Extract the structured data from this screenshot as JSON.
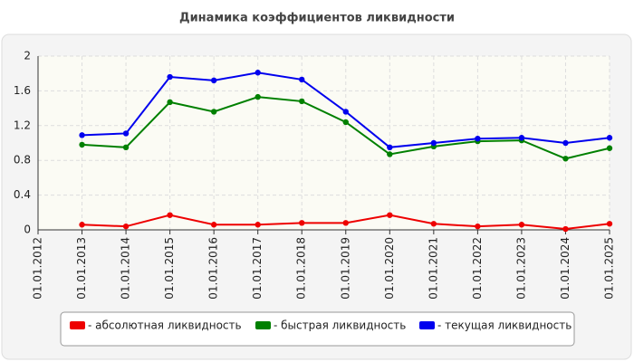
{
  "chart_data": {
    "type": "line",
    "title": "Динамика коэффициентов ликвидности",
    "categories": [
      "01.01.2012",
      "01.01.2013",
      "01.01.2014",
      "01.01.2015",
      "01.01.2016",
      "01.01.2017",
      "01.01.2018",
      "01.01.2019",
      "01.01.2020",
      "01.01.2021",
      "01.01.2022",
      "01.01.2023",
      "01.01.2024",
      "01.01.2025"
    ],
    "series": [
      {
        "name": "- абсолютная ликвидность",
        "color": "#ee0000",
        "values": [
          null,
          0.06,
          0.04,
          0.17,
          0.06,
          0.06,
          0.08,
          0.08,
          0.17,
          0.07,
          0.04,
          0.06,
          0.01,
          0.07
        ]
      },
      {
        "name": "- быстрая ликвидность",
        "color": "#008000",
        "values": [
          null,
          0.98,
          0.95,
          1.47,
          1.36,
          1.53,
          1.48,
          1.24,
          0.87,
          0.96,
          1.02,
          1.03,
          0.82,
          0.94
        ]
      },
      {
        "name": "- текущая ликвидность",
        "color": "#0000ee",
        "values": [
          null,
          1.09,
          1.11,
          1.76,
          1.72,
          1.81,
          1.73,
          1.36,
          0.95,
          1.0,
          1.05,
          1.06,
          1.0,
          1.06
        ]
      }
    ],
    "ylim": [
      0,
      2
    ],
    "yticks": [
      0,
      0.4,
      0.8,
      1.2,
      1.6,
      2
    ],
    "grid": true
  }
}
